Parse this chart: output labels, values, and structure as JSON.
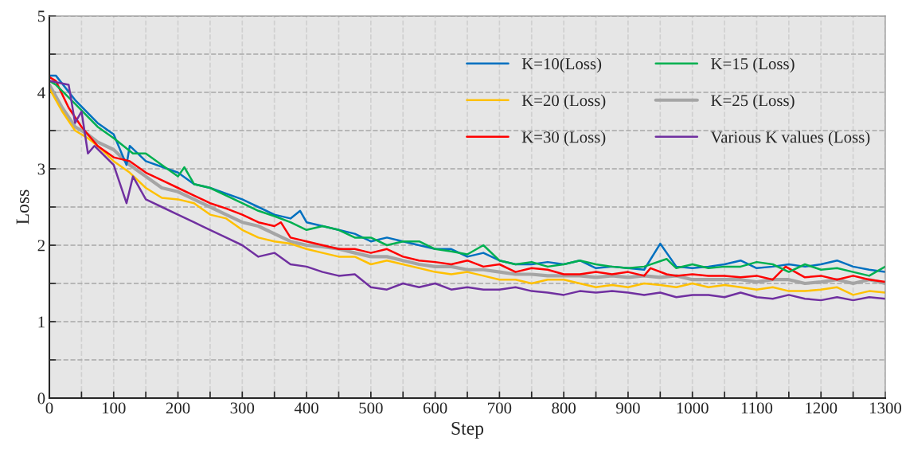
{
  "chart_data": {
    "type": "line",
    "xlabel": "Step",
    "ylabel": "Loss",
    "xlim": [
      0,
      1300
    ],
    "ylim": [
      0,
      5
    ],
    "xticks": [
      0,
      {
        "value": 50,
        "label": null
      },
      100,
      {
        "value": 150,
        "label": null
      },
      200,
      {
        "value": 250,
        "label": null
      },
      300,
      {
        "value": 350,
        "label": null
      },
      400,
      {
        "value": 450,
        "label": null
      },
      500,
      {
        "value": 550,
        "label": null
      },
      600,
      {
        "value": 650,
        "label": null
      },
      700,
      {
        "value": 750,
        "label": null
      },
      800,
      {
        "value": 850,
        "label": null
      },
      900,
      {
        "value": 950,
        "label": null
      },
      1000,
      {
        "value": 1050,
        "label": null
      },
      1100,
      {
        "value": 1150,
        "label": null
      },
      1200,
      {
        "value": 1250,
        "label": null
      },
      1300
    ],
    "yticks": [
      0,
      {
        "value": 0.5,
        "label": null
      },
      1,
      {
        "value": 1.5,
        "label": null
      },
      2,
      {
        "value": 2.5,
        "label": null
      },
      3,
      {
        "value": 3.5,
        "label": null
      },
      4,
      {
        "value": 4.5,
        "label": null
      },
      5
    ],
    "grid": true,
    "legend": "top right",
    "marker": "none",
    "line_style": "solid",
    "series": [
      {
        "name": "K=10(Loss)",
        "color": "#0070c0",
        "x": [
          0,
          10,
          40,
          75,
          100,
          120,
          125,
          150,
          200,
          225,
          250,
          300,
          325,
          350,
          375,
          390,
          400,
          425,
          450,
          475,
          500,
          525,
          550,
          575,
          600,
          625,
          650,
          675,
          700,
          725,
          750,
          775,
          800,
          825,
          850,
          875,
          900,
          925,
          950,
          975,
          1000,
          1025,
          1050,
          1075,
          1100,
          1125,
          1150,
          1175,
          1200,
          1225,
          1250,
          1275,
          1300
        ],
        "values": [
          4.22,
          4.22,
          3.9,
          3.6,
          3.45,
          3.05,
          3.3,
          3.1,
          2.95,
          2.8,
          2.75,
          2.6,
          2.5,
          2.4,
          2.35,
          2.45,
          2.3,
          2.25,
          2.2,
          2.15,
          2.05,
          2.1,
          2.05,
          2.0,
          1.95,
          1.95,
          1.85,
          1.9,
          1.8,
          1.75,
          1.75,
          1.78,
          1.75,
          1.8,
          1.7,
          1.72,
          1.7,
          1.68,
          2.02,
          1.72,
          1.7,
          1.72,
          1.75,
          1.8,
          1.7,
          1.72,
          1.75,
          1.72,
          1.75,
          1.8,
          1.72,
          1.68,
          1.65
        ]
      },
      {
        "name": "K=20 (Loss)",
        "color": "#ffc000",
        "x": [
          0,
          20,
          40,
          60,
          75,
          100,
          125,
          150,
          175,
          200,
          225,
          250,
          275,
          300,
          325,
          350,
          375,
          400,
          425,
          450,
          475,
          500,
          525,
          550,
          575,
          600,
          625,
          650,
          675,
          700,
          725,
          750,
          775,
          800,
          825,
          850,
          875,
          900,
          925,
          950,
          975,
          1000,
          1025,
          1050,
          1075,
          1100,
          1125,
          1150,
          1175,
          1200,
          1225,
          1250,
          1275,
          1300
        ],
        "values": [
          4.05,
          3.75,
          3.5,
          3.4,
          3.3,
          3.1,
          2.95,
          2.75,
          2.62,
          2.6,
          2.55,
          2.4,
          2.35,
          2.2,
          2.1,
          2.05,
          2.02,
          1.95,
          1.9,
          1.85,
          1.85,
          1.75,
          1.8,
          1.75,
          1.7,
          1.65,
          1.62,
          1.65,
          1.6,
          1.55,
          1.55,
          1.5,
          1.55,
          1.55,
          1.5,
          1.45,
          1.48,
          1.45,
          1.5,
          1.48,
          1.45,
          1.5,
          1.45,
          1.48,
          1.45,
          1.42,
          1.45,
          1.4,
          1.4,
          1.42,
          1.45,
          1.35,
          1.4,
          1.38
        ]
      },
      {
        "name": "K=30 (Loss)",
        "color": "#ff0000",
        "x": [
          0,
          10,
          30,
          50,
          75,
          100,
          125,
          150,
          175,
          200,
          225,
          250,
          275,
          300,
          325,
          350,
          360,
          375,
          400,
          425,
          450,
          475,
          500,
          525,
          550,
          575,
          600,
          625,
          650,
          675,
          700,
          725,
          750,
          775,
          800,
          825,
          850,
          875,
          900,
          925,
          935,
          960,
          975,
          1000,
          1025,
          1050,
          1075,
          1100,
          1125,
          1145,
          1175,
          1200,
          1225,
          1250,
          1275,
          1300
        ],
        "values": [
          4.2,
          4.15,
          3.8,
          3.55,
          3.3,
          3.15,
          3.1,
          2.95,
          2.85,
          2.75,
          2.65,
          2.55,
          2.48,
          2.4,
          2.3,
          2.25,
          2.3,
          2.1,
          2.05,
          2.0,
          1.95,
          1.95,
          1.9,
          1.95,
          1.85,
          1.8,
          1.78,
          1.75,
          1.8,
          1.72,
          1.75,
          1.65,
          1.7,
          1.68,
          1.62,
          1.62,
          1.65,
          1.62,
          1.65,
          1.6,
          1.7,
          1.62,
          1.6,
          1.62,
          1.6,
          1.6,
          1.58,
          1.6,
          1.55,
          1.72,
          1.58,
          1.6,
          1.55,
          1.6,
          1.55,
          1.52
        ]
      },
      {
        "name": "K=15 (Loss)",
        "color": "#00b050",
        "x": [
          0,
          10,
          40,
          75,
          100,
          130,
          150,
          175,
          200,
          210,
          225,
          250,
          275,
          300,
          325,
          350,
          375,
          400,
          425,
          450,
          475,
          500,
          525,
          550,
          575,
          600,
          625,
          650,
          675,
          700,
          725,
          750,
          775,
          800,
          825,
          850,
          875,
          900,
          925,
          960,
          975,
          1000,
          1025,
          1050,
          1075,
          1100,
          1125,
          1150,
          1175,
          1200,
          1225,
          1250,
          1275,
          1300
        ],
        "values": [
          4.15,
          4.1,
          3.85,
          3.55,
          3.4,
          3.2,
          3.2,
          3.05,
          2.9,
          3.02,
          2.8,
          2.75,
          2.65,
          2.55,
          2.45,
          2.38,
          2.3,
          2.2,
          2.25,
          2.2,
          2.1,
          2.1,
          2.0,
          2.05,
          2.05,
          1.95,
          1.92,
          1.88,
          2.0,
          1.8,
          1.75,
          1.78,
          1.72,
          1.75,
          1.8,
          1.75,
          1.72,
          1.7,
          1.72,
          1.82,
          1.7,
          1.75,
          1.7,
          1.72,
          1.72,
          1.78,
          1.75,
          1.65,
          1.75,
          1.68,
          1.7,
          1.65,
          1.6,
          1.72
        ]
      },
      {
        "name": "K=25 (Loss)",
        "color": "#a5a5a5",
        "x": [
          0,
          20,
          40,
          60,
          75,
          100,
          125,
          150,
          175,
          200,
          225,
          250,
          275,
          300,
          325,
          350,
          375,
          400,
          425,
          450,
          475,
          500,
          525,
          550,
          575,
          600,
          625,
          650,
          675,
          700,
          725,
          750,
          775,
          800,
          825,
          850,
          875,
          900,
          925,
          950,
          975,
          1000,
          1025,
          1050,
          1075,
          1100,
          1125,
          1150,
          1175,
          1200,
          1225,
          1250,
          1275,
          1300
        ],
        "values": [
          4.1,
          3.8,
          3.55,
          3.45,
          3.35,
          3.25,
          3.05,
          2.9,
          2.75,
          2.7,
          2.6,
          2.5,
          2.4,
          2.3,
          2.25,
          2.15,
          2.05,
          2.0,
          1.98,
          1.95,
          1.9,
          1.85,
          1.85,
          1.8,
          1.75,
          1.72,
          1.72,
          1.68,
          1.68,
          1.65,
          1.62,
          1.62,
          1.6,
          1.6,
          1.6,
          1.58,
          1.6,
          1.58,
          1.6,
          1.58,
          1.6,
          1.55,
          1.55,
          1.55,
          1.55,
          1.52,
          1.55,
          1.55,
          1.5,
          1.52,
          1.55,
          1.5,
          1.55,
          1.5
        ]
      },
      {
        "name": "Various K values (Loss)",
        "color": "#7030a0",
        "x": [
          0,
          30,
          40,
          50,
          60,
          70,
          100,
          120,
          130,
          150,
          175,
          200,
          225,
          250,
          275,
          300,
          325,
          350,
          375,
          400,
          425,
          450,
          475,
          500,
          525,
          550,
          575,
          600,
          625,
          650,
          675,
          700,
          725,
          750,
          775,
          800,
          825,
          850,
          875,
          900,
          925,
          950,
          975,
          1000,
          1025,
          1050,
          1075,
          1100,
          1125,
          1150,
          1175,
          1200,
          1225,
          1250,
          1275,
          1300
        ],
        "values": [
          4.15,
          4.1,
          3.6,
          3.75,
          3.2,
          3.3,
          3.05,
          2.55,
          2.9,
          2.6,
          2.5,
          2.4,
          2.3,
          2.2,
          2.1,
          2.0,
          1.85,
          1.9,
          1.75,
          1.72,
          1.65,
          1.6,
          1.62,
          1.45,
          1.42,
          1.5,
          1.45,
          1.5,
          1.42,
          1.45,
          1.42,
          1.42,
          1.45,
          1.4,
          1.38,
          1.35,
          1.4,
          1.38,
          1.4,
          1.38,
          1.35,
          1.38,
          1.32,
          1.35,
          1.35,
          1.32,
          1.38,
          1.32,
          1.3,
          1.35,
          1.3,
          1.28,
          1.32,
          1.28,
          1.32,
          1.3
        ]
      }
    ]
  }
}
